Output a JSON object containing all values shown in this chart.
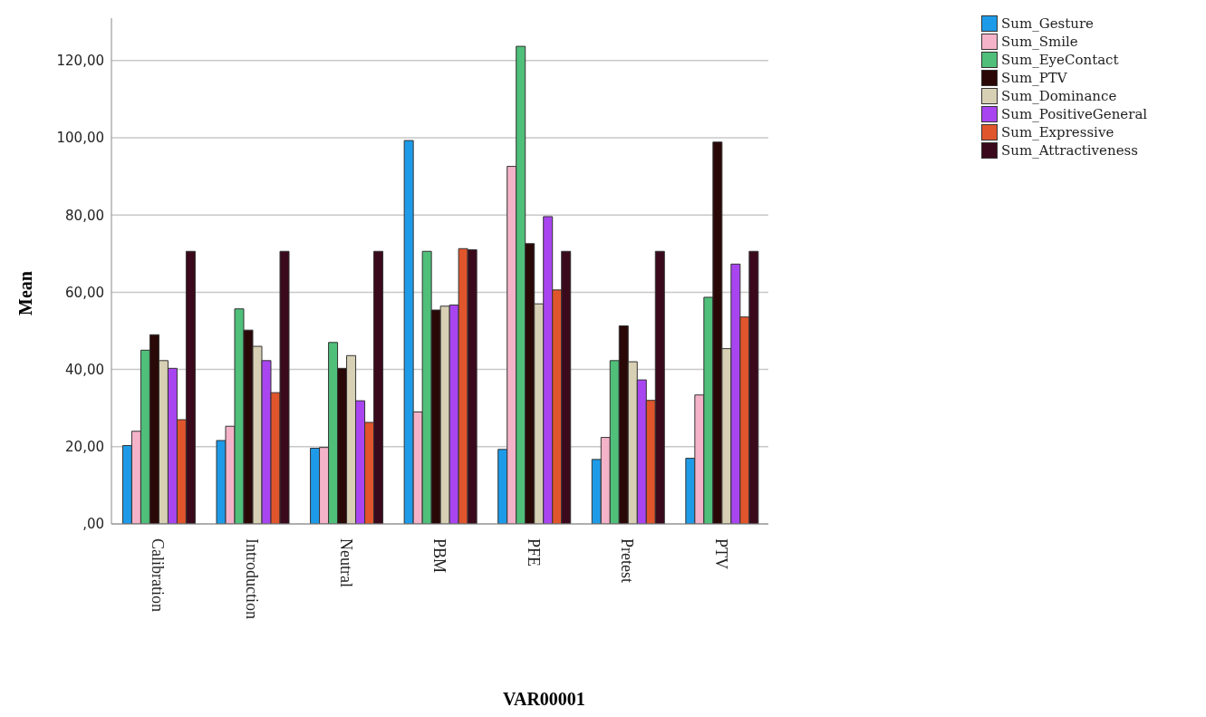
{
  "chart_data": {
    "type": "bar",
    "xlabel": "VAR00001",
    "ylabel": "Mean",
    "categories": [
      "Calibration",
      "Introduction",
      "Neutral",
      "PBM",
      "PFE",
      "Pretest",
      "PTV"
    ],
    "series": [
      {
        "name": "Sum_Gesture",
        "color": "#1e9be8",
        "values": [
          20.3,
          21.6,
          19.6,
          99.3,
          19.3,
          16.7,
          17.0
        ]
      },
      {
        "name": "Sum_Smile",
        "color": "#f4b3c8",
        "values": [
          24.0,
          25.3,
          19.8,
          29.0,
          92.6,
          22.4,
          33.4
        ]
      },
      {
        "name": "Sum_EyeContact",
        "color": "#4fbf7a",
        "values": [
          45.0,
          55.7,
          47.0,
          70.6,
          123.7,
          42.3,
          58.7
        ]
      },
      {
        "name": "Sum_PTV",
        "color": "#2a0808",
        "values": [
          49.0,
          50.2,
          40.3,
          55.4,
          72.6,
          51.3,
          98.9
        ]
      },
      {
        "name": "Sum_Dominance",
        "color": "#d8d0b4",
        "values": [
          42.3,
          46.0,
          43.6,
          56.4,
          57.0,
          42.0,
          45.4
        ]
      },
      {
        "name": "Sum_PositiveGeneral",
        "color": "#a945f0",
        "values": [
          40.3,
          42.3,
          31.9,
          56.7,
          79.6,
          37.3,
          67.3
        ]
      },
      {
        "name": "Sum_Expressive",
        "color": "#e0552c",
        "values": [
          27.0,
          34.0,
          26.3,
          71.3,
          60.6,
          32.0,
          53.6
        ]
      },
      {
        "name": "Sum_Attractiveness",
        "color": "#3a0a1c",
        "values": [
          70.6,
          70.6,
          70.6,
          71.0,
          70.6,
          70.6,
          70.6
        ]
      }
    ],
    "ylim": [
      0,
      131
    ],
    "yticks": [
      {
        "value": 0,
        "label": ",00"
      },
      {
        "value": 20,
        "label": "20,00"
      },
      {
        "value": 40,
        "label": "40,00"
      },
      {
        "value": 60,
        "label": "60,00"
      },
      {
        "value": 80,
        "label": "80,00"
      },
      {
        "value": 100,
        "label": "100,00"
      },
      {
        "value": 120,
        "label": "120,00"
      }
    ],
    "grid": "y",
    "legend": "top right"
  }
}
